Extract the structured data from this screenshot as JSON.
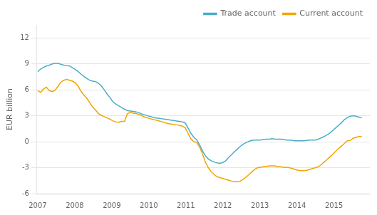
{
  "chart_data": {
    "type": "line",
    "ylabel": "EUR billion",
    "x": [
      2007,
      2007.078125,
      2007.15625,
      2007.234375,
      2007.3125,
      2007.390625,
      2007.46875,
      2007.546875,
      2007.625,
      2007.703125,
      2007.78125,
      2007.859375,
      2007.9375,
      2008.015625,
      2008.09375,
      2008.171875,
      2008.25,
      2008.328125,
      2008.40625,
      2008.484375,
      2008.5625,
      2008.640625,
      2008.71875,
      2008.796875,
      2008.875,
      2008.953125,
      2009.03125,
      2009.109375,
      2009.1875,
      2009.265625,
      2009.34375,
      2009.421875,
      2009.5,
      2009.578125,
      2009.65625,
      2009.734375,
      2009.8125,
      2009.890625,
      2009.96875,
      2010.046875,
      2010.125,
      2010.203125,
      2010.28125,
      2010.359375,
      2010.4375,
      2010.515625,
      2010.59375,
      2010.671875,
      2010.75,
      2010.828125,
      2010.90625,
      2010.984375,
      2011.0625,
      2011.140625,
      2011.21875,
      2011.296875,
      2011.375,
      2011.453125,
      2011.53125,
      2011.609375,
      2011.6875,
      2011.765625,
      2011.84375,
      2011.921875,
      2012,
      2012.078125,
      2012.15625,
      2012.234375,
      2012.3125,
      2012.390625,
      2012.46875,
      2012.546875,
      2012.625,
      2012.703125,
      2012.78125,
      2012.859375,
      2012.9375,
      2013.015625,
      2013.09375,
      2013.171875,
      2013.25,
      2013.328125,
      2013.40625,
      2013.484375,
      2013.5625,
      2013.640625,
      2013.71875,
      2013.796875,
      2013.875,
      2013.953125,
      2014.03125,
      2014.109375,
      2014.1875,
      2014.265625,
      2014.34375,
      2014.421875,
      2014.5,
      2014.578125,
      2014.65625,
      2014.734375,
      2014.8125,
      2014.890625,
      2014.96875,
      2015.046875,
      2015.125,
      2015.203125,
      2015.28125,
      2015.359375,
      2015.4375,
      2015.515625,
      2015.59375,
      2015.671875,
      2015.75
    ],
    "series": [
      {
        "name": "Trade account",
        "color": "#4bacc6",
        "values": [
          8.1,
          8.4,
          8.6,
          8.75,
          8.85,
          9.0,
          9.05,
          9.05,
          8.95,
          8.85,
          8.8,
          8.75,
          8.55,
          8.35,
          8.1,
          7.8,
          7.55,
          7.3,
          7.1,
          7.0,
          6.95,
          6.75,
          6.45,
          6.0,
          5.5,
          5.1,
          4.6,
          4.35,
          4.15,
          3.95,
          3.75,
          3.6,
          3.55,
          3.5,
          3.45,
          3.35,
          3.2,
          3.1,
          3.0,
          2.9,
          2.8,
          2.75,
          2.7,
          2.65,
          2.6,
          2.55,
          2.5,
          2.45,
          2.4,
          2.35,
          2.3,
          2.15,
          1.55,
          0.95,
          0.5,
          0.2,
          -0.4,
          -1.1,
          -1.65,
          -2.0,
          -2.2,
          -2.35,
          -2.45,
          -2.5,
          -2.4,
          -2.2,
          -1.8,
          -1.5,
          -1.15,
          -0.85,
          -0.55,
          -0.3,
          -0.1,
          0.05,
          0.15,
          0.2,
          0.2,
          0.2,
          0.25,
          0.3,
          0.3,
          0.35,
          0.3,
          0.3,
          0.3,
          0.25,
          0.2,
          0.2,
          0.15,
          0.1,
          0.1,
          0.1,
          0.1,
          0.15,
          0.2,
          0.2,
          0.2,
          0.3,
          0.45,
          0.6,
          0.8,
          1.0,
          1.3,
          1.6,
          1.9,
          2.2,
          2.55,
          2.8,
          2.95,
          3.0,
          2.95,
          2.85,
          2.75
        ]
      },
      {
        "name": "Current account",
        "color": "#f0a500",
        "values": [
          5.9,
          5.7,
          6.1,
          6.3,
          5.9,
          5.8,
          5.95,
          6.4,
          6.9,
          7.1,
          7.2,
          7.1,
          7.0,
          6.8,
          6.4,
          5.8,
          5.4,
          5.0,
          4.5,
          4.0,
          3.65,
          3.25,
          3.05,
          2.9,
          2.75,
          2.6,
          2.4,
          2.3,
          2.25,
          2.35,
          2.35,
          3.25,
          3.4,
          3.3,
          3.25,
          3.15,
          3.0,
          2.85,
          2.75,
          2.65,
          2.55,
          2.5,
          2.4,
          2.3,
          2.2,
          2.1,
          2.05,
          2.0,
          1.95,
          1.9,
          1.8,
          1.6,
          0.95,
          0.3,
          0.0,
          -0.1,
          -0.65,
          -1.45,
          -2.4,
          -3.0,
          -3.5,
          -3.8,
          -4.05,
          -4.15,
          -4.25,
          -4.35,
          -4.45,
          -4.55,
          -4.6,
          -4.65,
          -4.55,
          -4.35,
          -4.1,
          -3.8,
          -3.5,
          -3.2,
          -3.0,
          -2.95,
          -2.9,
          -2.85,
          -2.8,
          -2.8,
          -2.8,
          -2.9,
          -2.9,
          -2.95,
          -2.95,
          -3.0,
          -3.1,
          -3.2,
          -3.3,
          -3.35,
          -3.35,
          -3.3,
          -3.2,
          -3.1,
          -3.0,
          -2.9,
          -2.65,
          -2.35,
          -2.05,
          -1.75,
          -1.45,
          -1.1,
          -0.8,
          -0.5,
          -0.2,
          0.1,
          0.15,
          0.4,
          0.5,
          0.6,
          0.6
        ]
      }
    ],
    "xlim": [
      2006.98,
      2015.97
    ],
    "xticks": [
      2007,
      2008,
      2009,
      2010,
      2011,
      2012,
      2013,
      2014,
      2015
    ],
    "ylim": [
      -6,
      13.5
    ],
    "yticks": [
      -6,
      -3,
      0,
      3,
      6,
      9,
      12
    ],
    "grid": "y",
    "legend": "upper right"
  }
}
